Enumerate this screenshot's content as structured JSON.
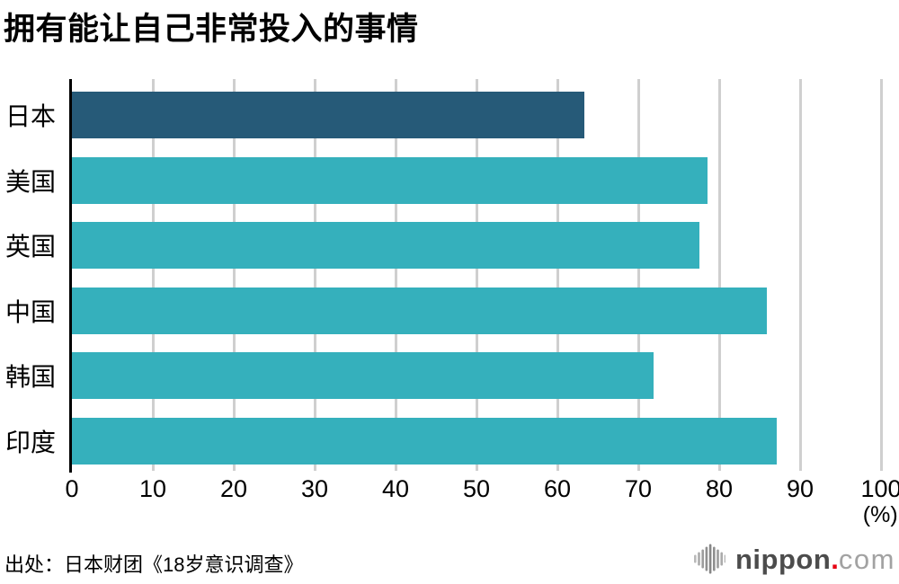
{
  "chart_data": {
    "type": "bar",
    "orientation": "horizontal",
    "title": "拥有能让自己非常投入的事情",
    "categories": [
      "日本",
      "美国",
      "英国",
      "中国",
      "韩国",
      "印度"
    ],
    "values": [
      63.3,
      78.6,
      77.5,
      85.9,
      71.9,
      87.1
    ],
    "bar_colors": [
      "#265a78",
      "#35b0bc",
      "#35b0bc",
      "#35b0bc",
      "#35b0bc",
      "#35b0bc"
    ],
    "highlight_color": "#265a78",
    "default_bar_color": "#35b0bc",
    "xlabel": "(%)",
    "xlim": [
      0,
      100
    ],
    "xticks": [
      0,
      10,
      20,
      30,
      40,
      50,
      60,
      70,
      80,
      90,
      100
    ],
    "grid": true,
    "gridline_color": "#cfcfcf",
    "axis_color": "#000000",
    "legend": "none"
  },
  "footer": {
    "source": "出处：日本财团《18岁意识调查》",
    "logo": {
      "name": "nippon",
      "dot": ".",
      "tld": "com",
      "icon": "soundwave-bars-icon",
      "dot_color": "#e60012"
    }
  }
}
